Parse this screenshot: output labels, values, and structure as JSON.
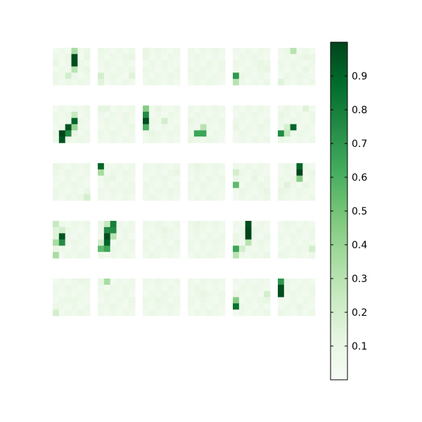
{
  "chart_data": {
    "type": "heatmap",
    "title": "",
    "layout": {
      "rows": 5,
      "cols": 6,
      "cell_grid": [
        6,
        6
      ]
    },
    "colorbar": {
      "range": [
        0,
        1
      ],
      "ticks": [
        0.1,
        0.2,
        0.3,
        0.4,
        0.5,
        0.6,
        0.7,
        0.8,
        0.9
      ],
      "tick_labels": [
        "0.1",
        "0.2",
        "0.3",
        "0.4",
        "0.5",
        "0.6",
        "0.7",
        "0.8",
        "0.9"
      ]
    },
    "colormap": [
      "#f7fcf5",
      "#e5f5e0",
      "#c7e9c0",
      "#a1d99b",
      "#74c476",
      "#41ab5d",
      "#238b45",
      "#006d2c",
      "#00441b"
    ],
    "background_value": 0.06,
    "panels": [
      {
        "id": "r1c1",
        "row": 0,
        "col": 0,
        "peaks": [
          [
            0,
            3,
            0.35
          ],
          [
            1,
            3,
            0.97
          ],
          [
            2,
            3,
            0.97
          ],
          [
            3,
            3,
            0.3
          ],
          [
            4,
            2,
            0.2
          ],
          [
            2,
            0,
            0.1
          ],
          [
            1,
            5,
            0.1
          ],
          [
            3,
            5,
            0.1
          ]
        ]
      },
      {
        "id": "r1c2",
        "row": 0,
        "col": 1,
        "peaks": [
          [
            1,
            5,
            0.1
          ],
          [
            4,
            0,
            0.2
          ],
          [
            4,
            5,
            0.15
          ],
          [
            5,
            0,
            0.15
          ]
        ]
      },
      {
        "id": "r1c3",
        "row": 0,
        "col": 2,
        "peaks": [
          [
            0,
            0,
            0.1
          ],
          [
            1,
            0,
            0.1
          ],
          [
            2,
            1,
            0.08
          ]
        ]
      },
      {
        "id": "r1c4",
        "row": 0,
        "col": 3,
        "peaks": [
          [
            2,
            3,
            0.08
          ],
          [
            4,
            1,
            0.08
          ]
        ]
      },
      {
        "id": "r1c5",
        "row": 0,
        "col": 4,
        "peaks": [
          [
            4,
            0,
            0.7
          ],
          [
            5,
            0,
            0.3
          ],
          [
            2,
            4,
            0.1
          ],
          [
            3,
            5,
            0.1
          ]
        ]
      },
      {
        "id": "r1c6",
        "row": 0,
        "col": 5,
        "peaks": [
          [
            0,
            2,
            0.3
          ],
          [
            5,
            0,
            0.15
          ],
          [
            1,
            4,
            0.1
          ],
          [
            3,
            4,
            0.1
          ]
        ]
      },
      {
        "id": "r2c1",
        "row": 1,
        "col": 0,
        "peaks": [
          [
            1,
            3,
            0.25
          ],
          [
            2,
            3,
            0.9
          ],
          [
            3,
            2,
            0.95
          ],
          [
            4,
            2,
            0.75
          ],
          [
            3,
            3,
            0.4
          ],
          [
            4,
            1,
            1.0
          ],
          [
            5,
            1,
            0.95
          ],
          [
            4,
            3,
            0.1
          ]
        ]
      },
      {
        "id": "r2c2",
        "row": 1,
        "col": 1,
        "peaks": [
          [
            0,
            0,
            0.12
          ],
          [
            0,
            1,
            0.12
          ],
          [
            2,
            4,
            0.08
          ]
        ]
      },
      {
        "id": "r2c3",
        "row": 1,
        "col": 2,
        "peaks": [
          [
            0,
            0,
            0.45
          ],
          [
            1,
            0,
            0.75
          ],
          [
            2,
            0,
            0.97
          ],
          [
            3,
            0,
            0.6
          ],
          [
            2,
            3,
            0.2
          ],
          [
            4,
            1,
            0.1
          ],
          [
            0,
            2,
            0.1
          ]
        ]
      },
      {
        "id": "r2c4",
        "row": 1,
        "col": 3,
        "peaks": [
          [
            4,
            1,
            0.65
          ],
          [
            4,
            2,
            0.65
          ],
          [
            3,
            2,
            0.3
          ],
          [
            2,
            0,
            0.1
          ],
          [
            5,
            0,
            0.1
          ]
        ]
      },
      {
        "id": "r2c5",
        "row": 1,
        "col": 4,
        "peaks": [
          [
            3,
            0,
            0.1
          ],
          [
            1,
            3,
            0.08
          ],
          [
            2,
            5,
            0.08
          ]
        ]
      },
      {
        "id": "r2c6",
        "row": 1,
        "col": 5,
        "peaks": [
          [
            4,
            0,
            0.75
          ],
          [
            3,
            1,
            0.2
          ],
          [
            3,
            2,
            0.9
          ],
          [
            4,
            1,
            0.25
          ],
          [
            1,
            0,
            0.1
          ],
          [
            0,
            4,
            0.15
          ]
        ]
      },
      {
        "id": "r3c1",
        "row": 2,
        "col": 0,
        "peaks": [
          [
            0,
            0,
            0.1
          ],
          [
            5,
            5,
            0.2
          ],
          [
            4,
            5,
            0.1
          ]
        ]
      },
      {
        "id": "r3c2",
        "row": 2,
        "col": 1,
        "peaks": [
          [
            0,
            0,
            0.9
          ],
          [
            1,
            0,
            0.35
          ],
          [
            2,
            2,
            0.1
          ],
          [
            4,
            4,
            0.08
          ]
        ]
      },
      {
        "id": "r3c3",
        "row": 2,
        "col": 2,
        "peaks": [
          [
            1,
            5,
            0.1
          ],
          [
            3,
            0,
            0.08
          ]
        ]
      },
      {
        "id": "r3c4",
        "row": 2,
        "col": 3,
        "peaks": [
          [
            0,
            1,
            0.1
          ],
          [
            2,
            3,
            0.08
          ]
        ]
      },
      {
        "id": "r3c5",
        "row": 2,
        "col": 4,
        "peaks": [
          [
            1,
            0,
            0.2
          ],
          [
            3,
            0,
            0.55
          ],
          [
            2,
            3,
            0.1
          ],
          [
            4,
            5,
            0.1
          ]
        ]
      },
      {
        "id": "r3c6",
        "row": 2,
        "col": 5,
        "peaks": [
          [
            0,
            3,
            0.9
          ],
          [
            1,
            3,
            1.0
          ],
          [
            2,
            3,
            0.45
          ],
          [
            3,
            1,
            0.15
          ],
          [
            4,
            0,
            0.1
          ],
          [
            3,
            4,
            0.1
          ]
        ]
      },
      {
        "id": "r4c1",
        "row": 3,
        "col": 0,
        "peaks": [
          [
            0,
            0,
            0.25
          ],
          [
            1,
            0,
            0.15
          ],
          [
            1,
            1,
            0.2
          ],
          [
            2,
            1,
            0.95
          ],
          [
            3,
            1,
            0.75
          ],
          [
            2,
            0,
            0.15
          ],
          [
            3,
            0,
            0.35
          ],
          [
            5,
            0,
            0.35
          ],
          [
            4,
            0,
            0.1
          ]
        ]
      },
      {
        "id": "r4c2",
        "row": 3,
        "col": 1,
        "peaks": [
          [
            0,
            1,
            0.25
          ],
          [
            0,
            2,
            0.8
          ],
          [
            1,
            1,
            0.75
          ],
          [
            1,
            2,
            0.75
          ],
          [
            2,
            1,
            0.97
          ],
          [
            3,
            1,
            0.9
          ],
          [
            2,
            2,
            0.3
          ],
          [
            4,
            0,
            0.55
          ],
          [
            4,
            1,
            0.65
          ],
          [
            3,
            0,
            0.2
          ]
        ]
      },
      {
        "id": "r4c3",
        "row": 3,
        "col": 2,
        "peaks": [
          [
            1,
            3,
            0.1
          ],
          [
            3,
            5,
            0.08
          ]
        ]
      },
      {
        "id": "r4c4",
        "row": 3,
        "col": 3,
        "peaks": [
          [
            0,
            1,
            0.1
          ],
          [
            3,
            4,
            0.08
          ]
        ]
      },
      {
        "id": "r4c5",
        "row": 3,
        "col": 4,
        "peaks": [
          [
            0,
            2,
            0.97
          ],
          [
            1,
            2,
            1.0
          ],
          [
            2,
            2,
            1.0
          ],
          [
            3,
            2,
            0.3
          ],
          [
            4,
            0,
            0.65
          ],
          [
            5,
            0,
            0.3
          ],
          [
            4,
            1,
            0.2
          ],
          [
            3,
            0,
            0.1
          ]
        ]
      },
      {
        "id": "r4c6",
        "row": 3,
        "col": 5,
        "peaks": [
          [
            4,
            5,
            0.2
          ],
          [
            1,
            3,
            0.08
          ]
        ]
      },
      {
        "id": "r5c1",
        "row": 4,
        "col": 0,
        "peaks": [
          [
            5,
            0,
            0.2
          ],
          [
            0,
            4,
            0.1
          ],
          [
            3,
            2,
            0.08
          ]
        ]
      },
      {
        "id": "r5c2",
        "row": 4,
        "col": 1,
        "peaks": [
          [
            0,
            1,
            0.35
          ],
          [
            0,
            0,
            0.1
          ],
          [
            2,
            4,
            0.08
          ]
        ]
      },
      {
        "id": "r5c3",
        "row": 4,
        "col": 2,
        "peaks": [
          [
            3,
            2,
            0.1
          ],
          [
            1,
            4,
            0.08
          ]
        ]
      },
      {
        "id": "r5c4",
        "row": 4,
        "col": 3,
        "peaks": [
          [
            2,
            2,
            0.1
          ],
          [
            0,
            4,
            0.08
          ]
        ]
      },
      {
        "id": "r5c5",
        "row": 4,
        "col": 4,
        "peaks": [
          [
            3,
            0,
            0.45
          ],
          [
            4,
            0,
            0.85
          ],
          [
            2,
            5,
            0.2
          ],
          [
            3,
            5,
            0.1
          ]
        ]
      },
      {
        "id": "r5c6",
        "row": 4,
        "col": 5,
        "peaks": [
          [
            0,
            0,
            0.7
          ],
          [
            1,
            0,
            0.97
          ],
          [
            2,
            0,
            0.97
          ],
          [
            4,
            3,
            0.1
          ]
        ]
      }
    ]
  }
}
